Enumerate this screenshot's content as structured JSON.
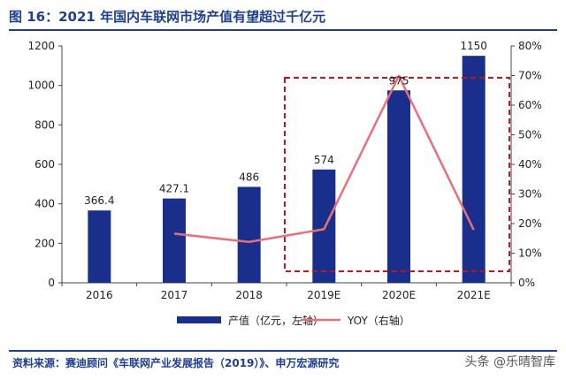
{
  "title": "图 16：2021 年国内车联网市场产值有望超过千亿元",
  "source": "资料来源：赛迪顾问《车联网产业发展报告（2019）》、申万宏源研究",
  "watermark": "头条 @乐晴智库",
  "colors": {
    "bar": "#1a2f8c",
    "line": "#e8707a",
    "highlight_box": "#c0171e",
    "title": "#1f3f8f"
  },
  "chart_data": {
    "type": "bar",
    "categories": [
      "2016",
      "2017",
      "2018",
      "2019E",
      "2020E",
      "2021E"
    ],
    "series": [
      {
        "name": "产值（亿元，左轴）",
        "type": "bar",
        "axis": "left",
        "values": [
          366.4,
          427.1,
          486,
          574,
          975,
          1150
        ]
      },
      {
        "name": "YOY（右轴）",
        "type": "line",
        "axis": "right",
        "values": [
          null,
          16.6,
          13.8,
          18.1,
          69.9,
          17.9
        ]
      }
    ],
    "data_labels": [
      "366.4",
      "427.1",
      "486",
      "574",
      "975",
      "1150"
    ],
    "y_left": {
      "min": 0,
      "max": 1200,
      "ticks": [
        0,
        200,
        400,
        600,
        800,
        1000,
        1200
      ]
    },
    "y_right": {
      "min": 0,
      "max": 80,
      "ticks": [
        "0%",
        "10%",
        "20%",
        "30%",
        "40%",
        "50%",
        "60%",
        "70%",
        "80%"
      ]
    },
    "highlight_range": [
      "2019E",
      "2021E"
    ],
    "legend_position": "bottom",
    "grid": false
  }
}
